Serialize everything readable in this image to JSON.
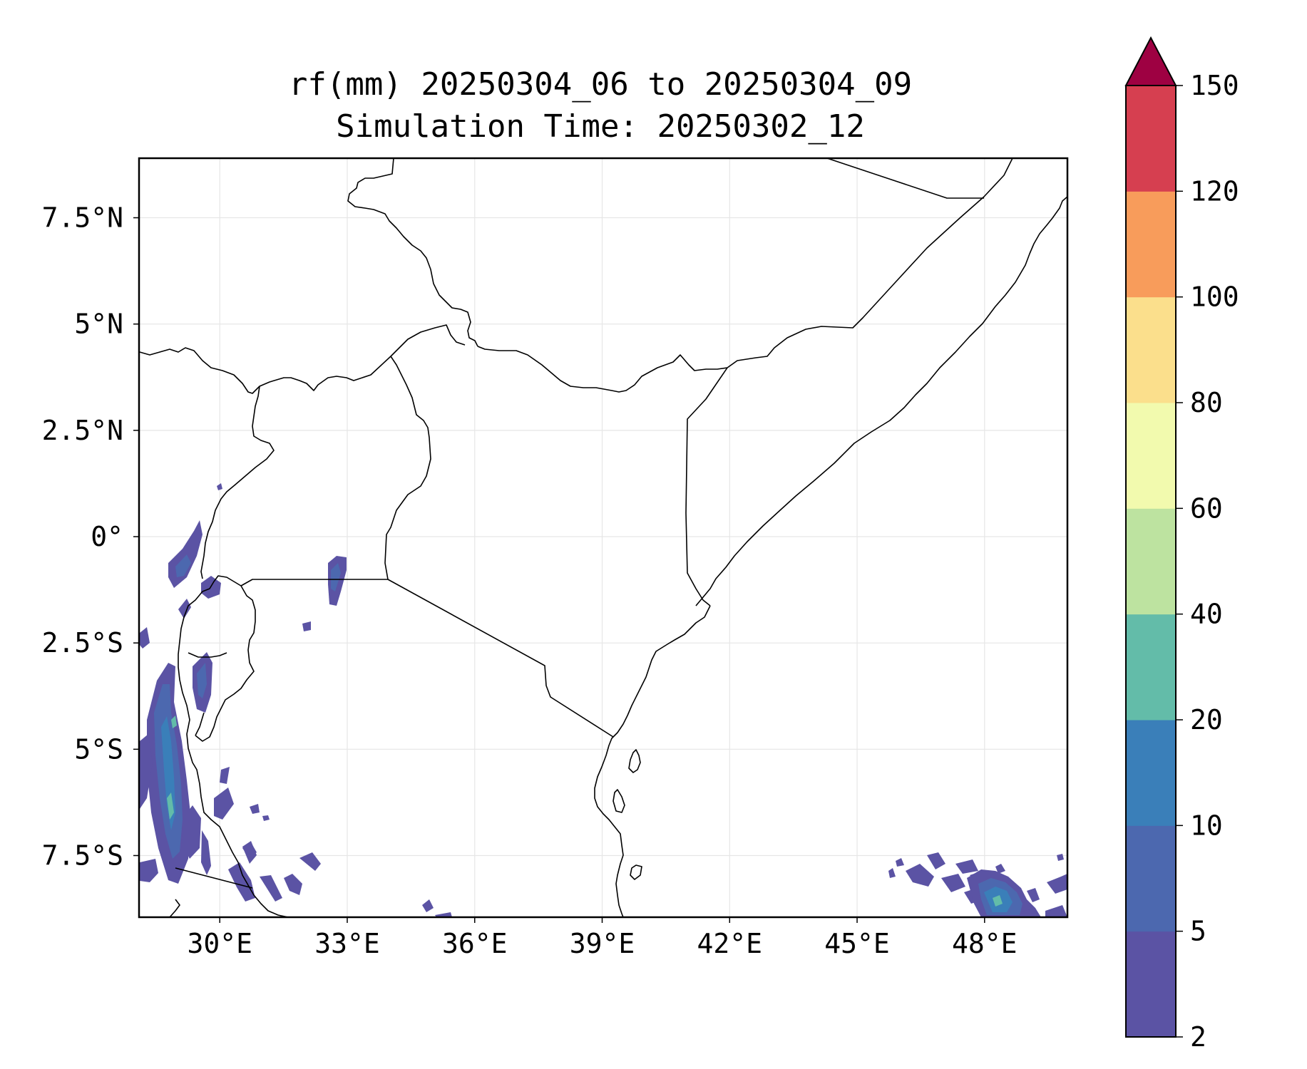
{
  "figure": {
    "title_line1": "rf(mm) 20250304_06 to 20250304_09",
    "title_line2": "Simulation Time: 20250302_12"
  },
  "map": {
    "lon_ticks": [
      {
        "lon": 30,
        "label": "30°E"
      },
      {
        "lon": 33,
        "label": "33°E"
      },
      {
        "lon": 36,
        "label": "36°E"
      },
      {
        "lon": 39,
        "label": "39°E"
      },
      {
        "lon": 42,
        "label": "42°E"
      },
      {
        "lon": 45,
        "label": "45°E"
      },
      {
        "lon": 48,
        "label": "48°E"
      }
    ],
    "lat_ticks": [
      {
        "lat": 7.5,
        "label": "7.5°N"
      },
      {
        "lat": 5,
        "label": "5°N"
      },
      {
        "lat": 2.5,
        "label": "2.5°N"
      },
      {
        "lat": 0,
        "label": "0°"
      },
      {
        "lat": -2.5,
        "label": "2.5°S"
      },
      {
        "lat": -5,
        "label": "5°S"
      },
      {
        "lat": -7.5,
        "label": "7.5°S"
      }
    ],
    "extent": {
      "lon_min": 28.1,
      "lon_max": 49.95,
      "lat_min": -8.95,
      "lat_max": 8.9
    },
    "gridlines": true
  },
  "colorbar": {
    "levels": [
      {
        "label": "2",
        "color": "#5b53a4"
      },
      {
        "label": "5",
        "color": "#4c68af"
      },
      {
        "label": "10",
        "color": "#3a7fb9"
      },
      {
        "label": "20",
        "color": "#63bca9"
      },
      {
        "label": "40",
        "color": "#bde3a0"
      },
      {
        "label": "60",
        "color": "#f2faae"
      },
      {
        "label": "80",
        "color": "#fbdf8c"
      },
      {
        "label": "100",
        "color": "#f89c5b"
      },
      {
        "label": "120",
        "color": "#d63f50"
      },
      {
        "label": "150",
        "color": ""
      }
    ],
    "extend_color": "#9e0142"
  }
}
